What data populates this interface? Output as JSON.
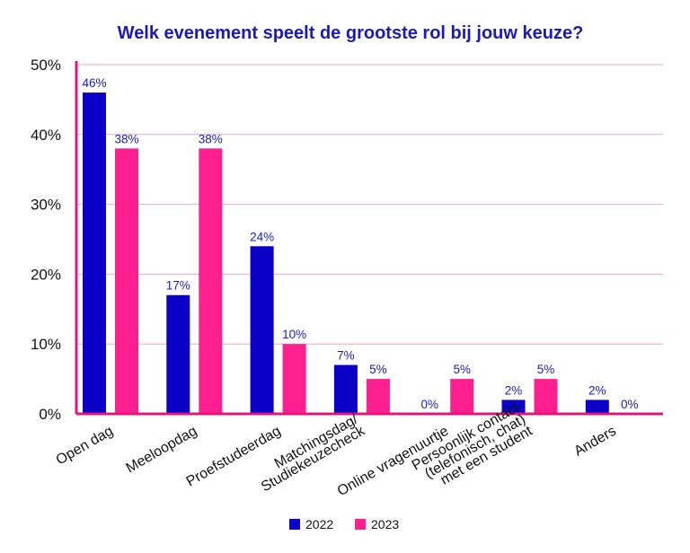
{
  "chart_data": {
    "type": "bar",
    "title": "Welk evenement speelt de grootste rol bij jouw keuze?",
    "xlabel": "",
    "ylabel": "",
    "ylim": [
      0,
      50
    ],
    "yticks": [
      0,
      10,
      20,
      30,
      40,
      50
    ],
    "ytick_labels": [
      "0%",
      "10%",
      "20%",
      "30%",
      "40%",
      "50%"
    ],
    "grid": true,
    "legend_position": "bottom-center",
    "categories": [
      [
        "Open dag"
      ],
      [
        "Meeloopdag"
      ],
      [
        "Proefstudeerdag"
      ],
      [
        "Matchingsdag/",
        "Studiekeuzecheck"
      ],
      [
        "Online vragenuurtje"
      ],
      [
        "Persoonlijk contact",
        "(telefonisch, chat)",
        "met een student"
      ],
      [
        "Anders"
      ]
    ],
    "series": [
      {
        "name": "2022",
        "color": "#0a00c8",
        "values": [
          46,
          17,
          24,
          7,
          0,
          2,
          2
        ],
        "labels": [
          "46%",
          "17%",
          "24%",
          "7%",
          "0%",
          "2%",
          "2%"
        ]
      },
      {
        "name": "2023",
        "color": "#ff1f8e",
        "values": [
          38,
          38,
          10,
          5,
          5,
          5,
          0
        ],
        "labels": [
          "38%",
          "38%",
          "10%",
          "5%",
          "5%",
          "5%",
          "0%"
        ]
      }
    ],
    "colors": {
      "axis": "#e0167f",
      "grid": "#f2a3c8",
      "title": "#1a1ab8",
      "data_label": "#1a1ab8"
    }
  }
}
